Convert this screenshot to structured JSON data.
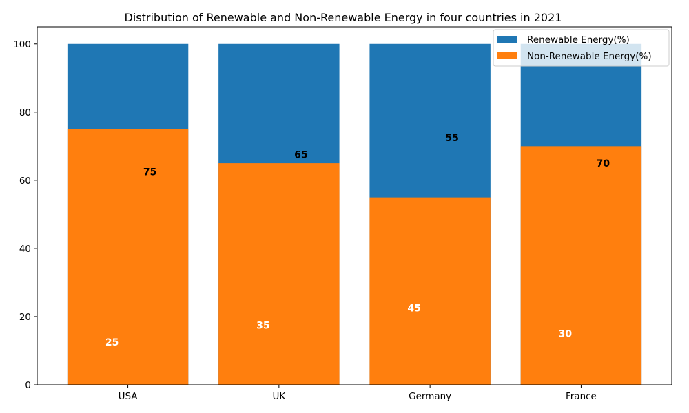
{
  "chart_data": {
    "type": "bar",
    "stacked": true,
    "title": "Distribution of Renewable and Non-Renewable Energy in four countries in 2021",
    "xlabel": "",
    "ylabel": "",
    "categories": [
      "USA",
      "UK",
      "Germany",
      "France"
    ],
    "ylim": [
      0,
      105
    ],
    "yticks": [
      0,
      20,
      40,
      60,
      80,
      100
    ],
    "grid": false,
    "legend_position": "top-right",
    "bar_totals": [
      100,
      100,
      100,
      100
    ],
    "series": [
      {
        "name": "Renewable Energy(%)",
        "color": "#1f77b4",
        "values": [
          25,
          35,
          45,
          30
        ],
        "label_color": "#ffffff"
      },
      {
        "name": "Non-Renewable Energy(%)",
        "color": "#ff7f0e",
        "values": [
          75,
          65,
          55,
          70
        ],
        "label_color": "#000000"
      }
    ]
  }
}
